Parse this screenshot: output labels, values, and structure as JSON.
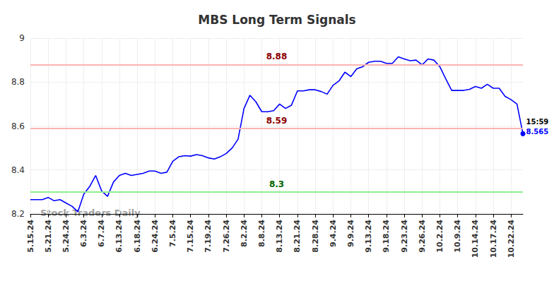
{
  "chart_data": {
    "type": "line",
    "title": "MBS Long Term Signals",
    "watermark": "Stock Traders Daily",
    "color": "#0000ff",
    "grid": true,
    "categories": [
      "5.15.24",
      null,
      null,
      "5.21.24",
      null,
      null,
      "5.24.24",
      null,
      null,
      "6.3.24",
      null,
      null,
      "6.7.24",
      null,
      null,
      "6.13.24",
      null,
      null,
      "6.18.24",
      null,
      null,
      "6.24.24",
      null,
      null,
      "7.5.24",
      null,
      null,
      "7.15.24",
      null,
      null,
      "7.19.24",
      null,
      null,
      "7.26.24",
      null,
      null,
      "8.2.24",
      null,
      null,
      "8.8.24",
      null,
      null,
      "8.13.24",
      null,
      null,
      "8.21.24",
      null,
      null,
      "8.28.24",
      null,
      null,
      "9.4.24",
      null,
      null,
      "9.9.24",
      null,
      null,
      "9.13.24",
      null,
      null,
      "9.18.24",
      null,
      null,
      "9.23.24",
      null,
      null,
      "9.26.24",
      null,
      null,
      "10.2.24",
      null,
      null,
      "10.9.24",
      null,
      null,
      "10.14.24",
      null,
      null,
      "10.17.24",
      null,
      null,
      "10.22.24",
      null,
      null
    ],
    "values": [
      8.265,
      8.265,
      8.265,
      8.275,
      8.26,
      8.265,
      8.25,
      8.235,
      8.21,
      8.29,
      8.325,
      8.375,
      8.305,
      8.28,
      8.345,
      8.375,
      8.385,
      8.375,
      8.38,
      8.385,
      8.395,
      8.395,
      8.385,
      8.39,
      8.44,
      8.46,
      8.465,
      8.463,
      8.47,
      8.465,
      8.455,
      8.45,
      8.46,
      8.475,
      8.5,
      8.54,
      8.68,
      8.74,
      8.71,
      8.665,
      8.665,
      8.67,
      8.7,
      8.68,
      8.695,
      8.76,
      8.76,
      8.765,
      8.765,
      8.757,
      8.745,
      8.785,
      8.805,
      8.845,
      8.825,
      8.86,
      8.87,
      8.89,
      8.895,
      8.895,
      8.885,
      8.885,
      8.915,
      8.905,
      8.897,
      8.9,
      8.878,
      8.905,
      8.9,
      8.87,
      8.815,
      8.762,
      8.762,
      8.762,
      8.767,
      8.78,
      8.772,
      8.79,
      8.772,
      8.772,
      8.735,
      8.72,
      8.7,
      8.565
    ],
    "last_point": {
      "time": "15:59"
    },
    "ylim": [
      8.2,
      9
    ],
    "yticks": [
      8.2,
      8.4,
      8.6,
      8.8,
      9
    ],
    "signal_lines": [
      {
        "value": 8.88,
        "color": "#ffb3b3",
        "text_color": "#8b0000"
      },
      {
        "value": 8.59,
        "color": "#ffb3b3",
        "text_color": "#8b0000"
      },
      {
        "value": 8.3,
        "color": "#90ee90",
        "text_color": "#006400"
      }
    ]
  }
}
